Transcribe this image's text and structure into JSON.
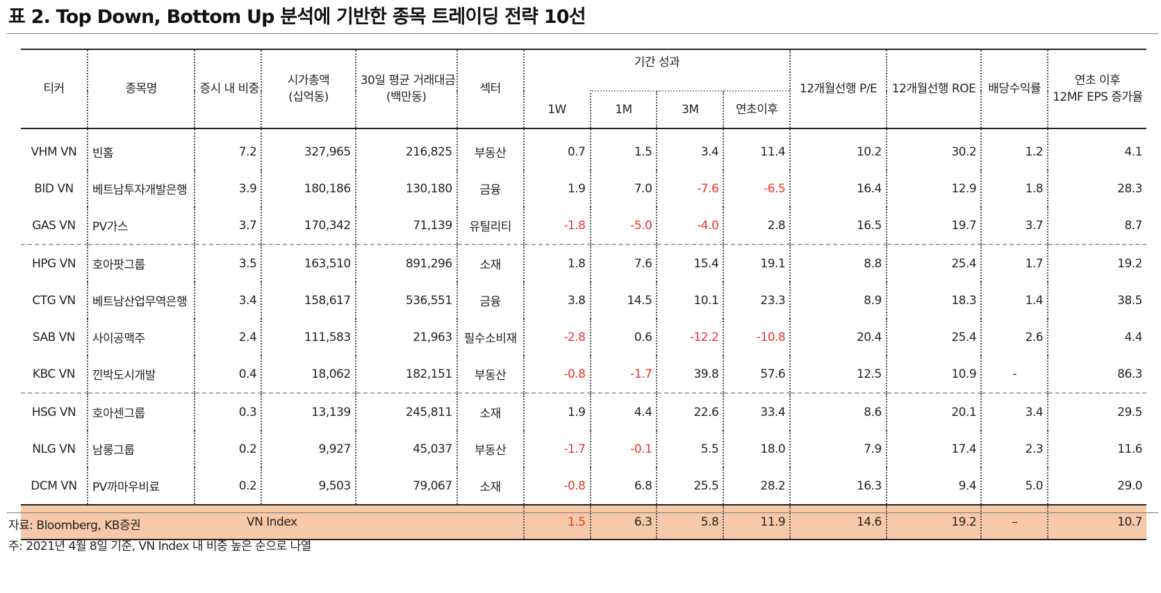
{
  "title": "표 2. Top Down, Bottom Up 분석에 기반한 종목 트레이딩 전략 10선",
  "headers": {
    "ticker": "티커",
    "name": "종목명",
    "weight": "증시 내 비중",
    "mcap_line1": "시가총액",
    "mcap_line2": "(십억동)",
    "adtv_line1": "30일 평균 거래대금",
    "adtv_line2": "(백만동)",
    "sector": "섹터",
    "perf_group": "기간 성과",
    "perf_1w": "1W",
    "perf_1m": "1M",
    "perf_3m": "3M",
    "perf_ytd": "연초이후",
    "pe": "12개월선행 P/E",
    "roe": "12개월선행 ROE",
    "div": "배당수익률",
    "eps_line1": "연초 이후",
    "eps_line2": "12MF EPS 증가율"
  },
  "rows": [
    {
      "ticker": "VHM VN",
      "name": "빈홈",
      "weight": "7.2",
      "mcap": "327,965",
      "adtv": "216,825",
      "sector": "부동산",
      "w1": "0.7",
      "m1": "1.5",
      "m3": "3.4",
      "ytd": "11.4",
      "pe": "10.2",
      "roe": "30.2",
      "div": "1.2",
      "eps": "4.1"
    },
    {
      "ticker": "BID VN",
      "name": "베트남투자개발은행",
      "weight": "3.9",
      "mcap": "180,186",
      "adtv": "130,180",
      "sector": "금융",
      "w1": "1.9",
      "m1": "7.0",
      "m3": "-7.6",
      "ytd": "-6.5",
      "pe": "16.4",
      "roe": "12.9",
      "div": "1.8",
      "eps": "28.3"
    },
    {
      "ticker": "GAS VN",
      "name": "PV가스",
      "weight": "3.7",
      "mcap": "170,342",
      "adtv": "71,139",
      "sector": "유틸리티",
      "w1": "-1.8",
      "m1": "-5.0",
      "m3": "-4.0",
      "ytd": "2.8",
      "pe": "16.5",
      "roe": "19.7",
      "div": "3.7",
      "eps": "8.7"
    },
    {
      "ticker": "HPG VN",
      "name": "호아팟그룹",
      "weight": "3.5",
      "mcap": "163,510",
      "adtv": "891,296",
      "sector": "소재",
      "w1": "1.8",
      "m1": "7.6",
      "m3": "15.4",
      "ytd": "19.1",
      "pe": "8.8",
      "roe": "25.4",
      "div": "1.7",
      "eps": "19.2"
    },
    {
      "ticker": "CTG VN",
      "name": "베트남산업무역은행",
      "weight": "3.4",
      "mcap": "158,617",
      "adtv": "536,551",
      "sector": "금융",
      "w1": "3.8",
      "m1": "14.5",
      "m3": "10.1",
      "ytd": "23.3",
      "pe": "8.9",
      "roe": "18.3",
      "div": "1.4",
      "eps": "38.5"
    },
    {
      "ticker": "SAB VN",
      "name": "사이공맥주",
      "weight": "2.4",
      "mcap": "111,583",
      "adtv": "21,963",
      "sector": "필수소비재",
      "w1": "-2.8",
      "m1": "0.6",
      "m3": "-12.2",
      "ytd": "-10.8",
      "pe": "20.4",
      "roe": "25.4",
      "div": "2.6",
      "eps": "4.4"
    },
    {
      "ticker": "KBC VN",
      "name": "낀박도시개발",
      "weight": "0.4",
      "mcap": "18,062",
      "adtv": "182,151",
      "sector": "부동산",
      "w1": "-0.8",
      "m1": "-1.7",
      "m3": "39.8",
      "ytd": "57.6",
      "pe": "12.5",
      "roe": "10.9",
      "div": "-",
      "eps": "86.3"
    },
    {
      "ticker": "HSG VN",
      "name": "호아센그룹",
      "weight": "0.3",
      "mcap": "13,139",
      "adtv": "245,811",
      "sector": "소재",
      "w1": "1.9",
      "m1": "4.4",
      "m3": "22.6",
      "ytd": "33.4",
      "pe": "8.6",
      "roe": "20.1",
      "div": "3.4",
      "eps": "29.5"
    },
    {
      "ticker": "NLG VN",
      "name": "남롱그룹",
      "weight": "0.2",
      "mcap": "9,927",
      "adtv": "45,037",
      "sector": "부동산",
      "w1": "-1.7",
      "m1": "-0.1",
      "m3": "5.5",
      "ytd": "18.0",
      "pe": "7.9",
      "roe": "17.4",
      "div": "2.3",
      "eps": "11.6"
    },
    {
      "ticker": "DCM VN",
      "name": "PV까마우비료",
      "weight": "0.2",
      "mcap": "9,503",
      "adtv": "79,067",
      "sector": "소재",
      "w1": "-0.8",
      "m1": "6.8",
      "m3": "25.5",
      "ytd": "28.2",
      "pe": "16.3",
      "roe": "9.4",
      "div": "5.0",
      "eps": "29.0"
    }
  ],
  "summary": {
    "label": "VN Index",
    "w1": "1.5",
    "m1": "6.3",
    "m3": "5.8",
    "ytd": "11.9",
    "pe": "14.6",
    "roe": "19.2",
    "div": "–",
    "eps": "10.7"
  },
  "notes": {
    "source": "자료: Bloomberg, KB증권",
    "footnote": "주: 2021년 4월 8일 기준, VN Index 내 비중 높은 순으로 나열"
  },
  "colors": {
    "negative": "#e8322e",
    "summary_bg": "#f7c9a9"
  }
}
